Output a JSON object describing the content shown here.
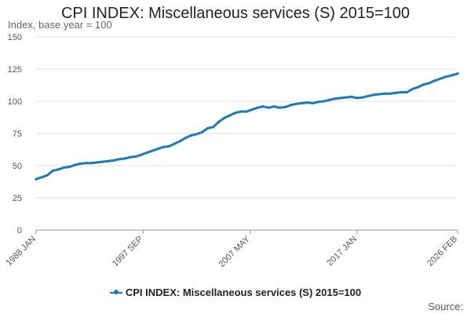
{
  "chart_data": {
    "type": "line",
    "title": "CPI INDEX: Miscellaneous services (S) 2015=100",
    "ylabel": "Index, base year = 100",
    "xlabel": "",
    "ylim": [
      0,
      150
    ],
    "yticks": [
      0,
      25,
      50,
      75,
      100,
      125,
      150
    ],
    "x_tick_labels": [
      "1988 JAN",
      "1997 SEP",
      "2007 MAY",
      "2017 JAN",
      "2026 FEB"
    ],
    "x_tick_years": [
      1988.0,
      1997.667,
      2007.333,
      2017.0,
      2026.083
    ],
    "x_range": [
      1988.0,
      2026.083
    ],
    "grid": true,
    "series": [
      {
        "name": "CPI INDEX: Miscellaneous services (S) 2015=100",
        "color": "#1f7ab8",
        "x": [
          1988.0,
          1988.5,
          1989.0,
          1989.5,
          1990.0,
          1990.5,
          1991.0,
          1991.5,
          1992.0,
          1992.5,
          1993.0,
          1993.5,
          1994.0,
          1994.5,
          1995.0,
          1995.5,
          1996.0,
          1996.5,
          1997.0,
          1997.5,
          1998.0,
          1998.5,
          1999.0,
          1999.5,
          2000.0,
          2000.5,
          2001.0,
          2001.5,
          2002.0,
          2002.5,
          2003.0,
          2003.5,
          2004.0,
          2004.5,
          2005.0,
          2005.5,
          2006.0,
          2006.5,
          2007.0,
          2007.5,
          2008.0,
          2008.5,
          2009.0,
          2009.5,
          2010.0,
          2010.5,
          2011.0,
          2011.5,
          2012.0,
          2012.5,
          2013.0,
          2013.5,
          2014.0,
          2014.5,
          2015.0,
          2015.5,
          2016.0,
          2016.5,
          2017.0,
          2017.5,
          2018.0,
          2018.5,
          2019.0,
          2019.5,
          2020.0,
          2020.5,
          2021.0,
          2021.5,
          2022.0,
          2022.5,
          2023.0,
          2023.5,
          2024.0,
          2024.5,
          2025.0,
          2025.5,
          2026.083
        ],
        "values": [
          39.5,
          41.0,
          42.5,
          46.0,
          47.0,
          48.5,
          49.0,
          50.5,
          51.5,
          52.0,
          52.0,
          52.5,
          53.0,
          53.5,
          54.0,
          55.0,
          55.5,
          56.5,
          57.0,
          58.5,
          60.0,
          61.5,
          63.0,
          64.5,
          65.0,
          67.0,
          69.0,
          71.5,
          73.5,
          74.5,
          76.0,
          79.0,
          80.0,
          84.0,
          87.0,
          89.0,
          91.0,
          92.0,
          92.0,
          93.5,
          95.0,
          96.0,
          95.0,
          96.0,
          95.0,
          95.5,
          97.0,
          98.0,
          98.5,
          99.0,
          98.5,
          99.5,
          100.0,
          101.0,
          102.0,
          102.5,
          103.0,
          103.5,
          102.5,
          103.0,
          104.0,
          105.0,
          105.5,
          106.0,
          106.0,
          106.5,
          107.0,
          107.0,
          109.5,
          111.0,
          113.0,
          114.0,
          116.0,
          117.5,
          119.0,
          120.0,
          121.5
        ]
      }
    ]
  },
  "legend": {
    "label": "CPI INDEX: Miscellaneous services (S) 2015=100"
  },
  "footer": {
    "source": "Source:"
  }
}
